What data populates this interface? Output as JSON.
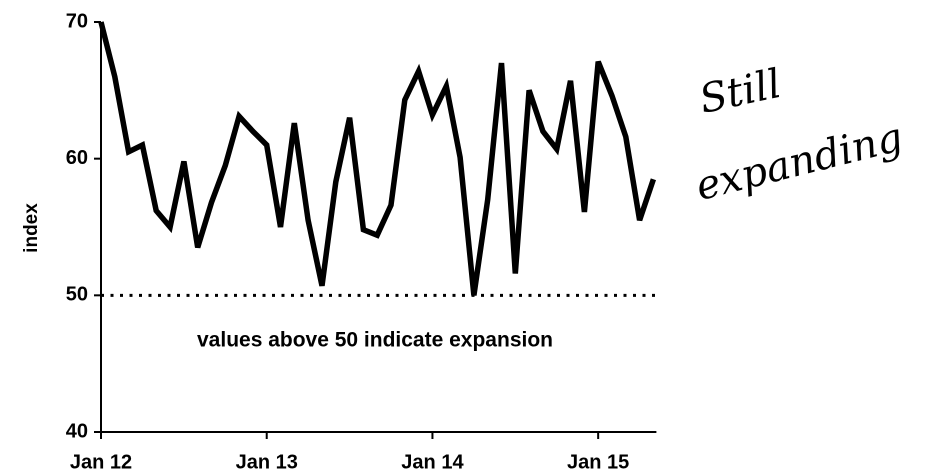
{
  "chart_data": {
    "type": "line",
    "ylabel": "index",
    "categories": [
      "Jan 12",
      null,
      null,
      null,
      null,
      null,
      null,
      null,
      null,
      null,
      null,
      null,
      "Jan 13",
      null,
      null,
      null,
      null,
      null,
      null,
      null,
      null,
      null,
      null,
      null,
      "Jan 14",
      null,
      null,
      null,
      null,
      null,
      null,
      null,
      null,
      null,
      null,
      null,
      "Jan 15",
      null,
      null,
      null,
      null
    ],
    "series": [
      {
        "name": "index",
        "color": "#000000",
        "values": [
          70,
          66,
          60.5,
          61,
          56.2,
          55,
          59.8,
          53.5,
          56.8,
          59.5,
          63.1,
          62,
          61,
          55,
          62.6,
          55.5,
          50.7,
          58.3,
          63,
          54.8,
          54.4,
          56.6,
          64.3,
          66.4,
          63.2,
          65.3,
          60.1,
          50,
          57,
          67,
          51.6,
          65,
          62,
          60.7,
          65.7,
          56.1,
          67.1,
          64.6,
          61.6,
          55.5,
          58.5
        ]
      }
    ],
    "ylim": [
      40,
      70
    ],
    "yticks": [
      40,
      50,
      60,
      70
    ],
    "reference_line": 50,
    "annotations": [
      "values above 50 indicate expansion",
      "Still",
      "expanding"
    ]
  }
}
